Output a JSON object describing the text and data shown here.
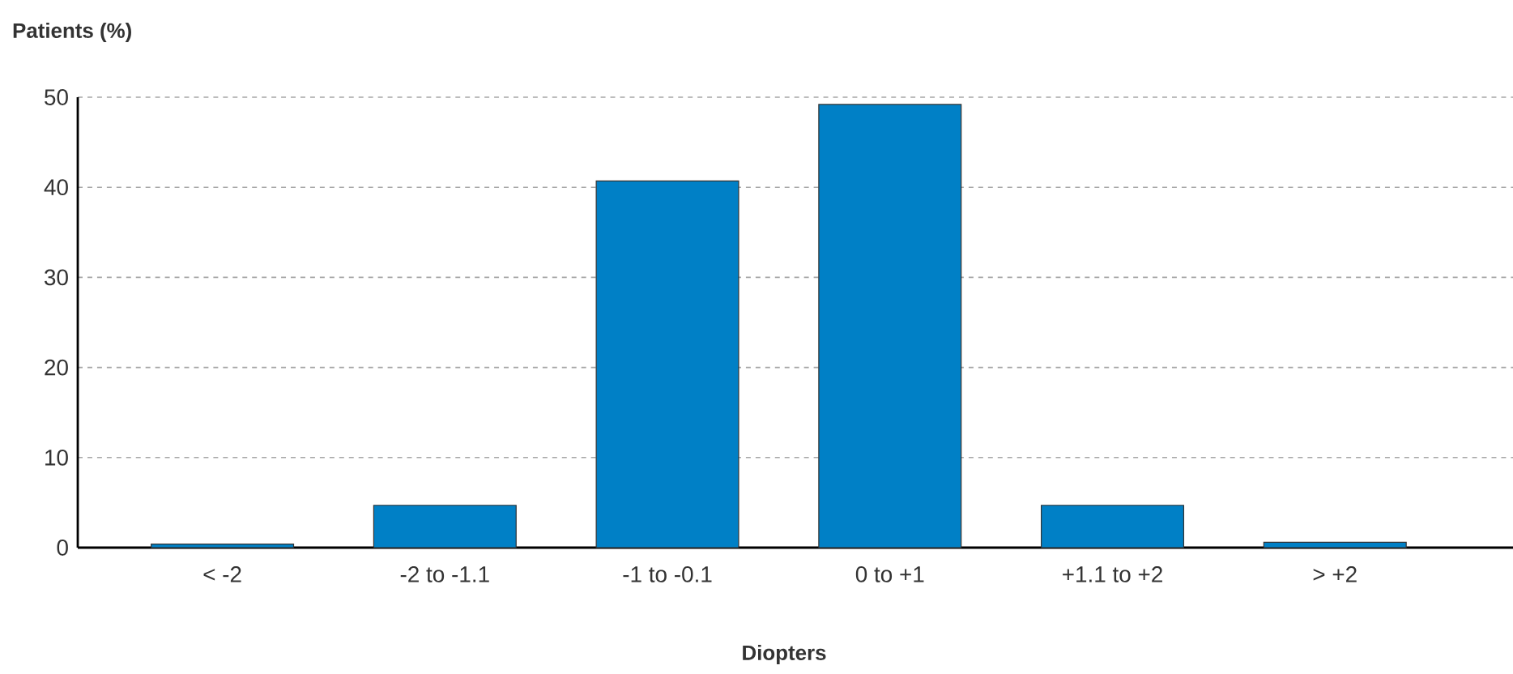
{
  "chart_data": {
    "type": "bar",
    "title": "Patients (%)",
    "xlabel": "Diopters",
    "categories": [
      "< -2",
      "-2 to -1.1",
      "-1 to -0.1",
      "0 to +1",
      "+1.1 to +2",
      "> +2"
    ],
    "values": [
      0.4,
      4.7,
      40.7,
      49.2,
      4.7,
      0.6
    ],
    "color": "#0080c6",
    "ylim": [
      0,
      50
    ],
    "yticks": [
      0,
      10,
      20,
      30,
      40,
      50
    ],
    "grid": "y"
  }
}
